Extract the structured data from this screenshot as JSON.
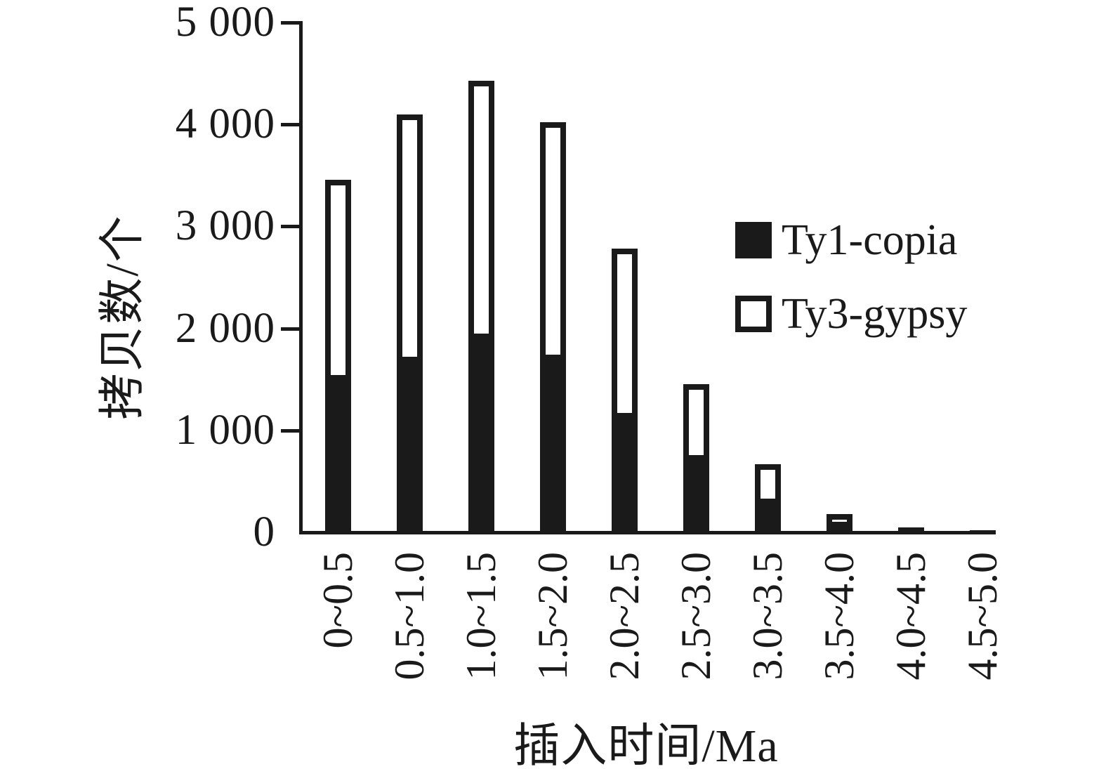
{
  "chart_data": {
    "type": "bar",
    "stacked": true,
    "title": "",
    "xlabel": "插入时间/Ma",
    "ylabel": "拷贝数/个",
    "categories": [
      "0~0.5",
      "0.5~1.0",
      "1.0~1.5",
      "1.5~2.0",
      "2.0~2.5",
      "2.5~3.0",
      "3.0~3.5",
      "3.5~4.0",
      "4.0~4.5",
      "4.5~5.0"
    ],
    "series": [
      {
        "name": "Ty1-copia",
        "values": [
          1540,
          1720,
          1950,
          1740,
          1170,
          760,
          330,
          105,
          45,
          20
        ]
      },
      {
        "name": "Ty3-gypsy",
        "values": [
          1920,
          2380,
          2480,
          2280,
          1610,
          690,
          340,
          75,
          0,
          0
        ]
      }
    ],
    "totals": [
      3460,
      4100,
      4430,
      4020,
      2780,
      1450,
      670,
      180,
      45,
      20
    ],
    "ylim": [
      0,
      5000
    ],
    "yticks": [
      0,
      1000,
      2000,
      3000,
      4000,
      5000
    ],
    "ytick_labels": [
      "0",
      "1 000",
      "2 000",
      "3 000",
      "4 000",
      "5 000"
    ],
    "grid": false,
    "legend_position": "inside-right"
  },
  "legend": {
    "items": [
      {
        "label": "Ty1-copia",
        "swatch": "filled-black-square"
      },
      {
        "label": "Ty3-gypsy",
        "swatch": "open-white-square"
      }
    ]
  },
  "colors": {
    "ink": "#1a1a1a",
    "background": "#ffffff",
    "ty1_copia_fill": "#1a1a1a",
    "ty3_gypsy_fill": "#ffffff"
  }
}
